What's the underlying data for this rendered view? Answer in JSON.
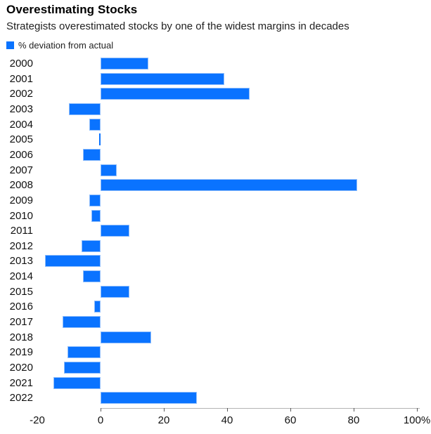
{
  "header": {
    "title": "Overestimating Stocks",
    "subtitle": "Strategists overestimated stocks by one of the widest margins in decades"
  },
  "legend": {
    "label": "% deviation from actual",
    "color": "#0a73ff"
  },
  "chart_data": {
    "type": "bar",
    "orientation": "horizontal",
    "title": "Overestimating Stocks",
    "subtitle": "Strategists overestimated stocks by one of the widest margins in decades",
    "series_name": "% deviation from actual",
    "categories": [
      "2000",
      "2001",
      "2002",
      "2003",
      "2004",
      "2005",
      "2006",
      "2007",
      "2008",
      "2009",
      "2010",
      "2011",
      "2012",
      "2013",
      "2014",
      "2015",
      "2016",
      "2017",
      "2018",
      "2019",
      "2020",
      "2021",
      "2022"
    ],
    "values": [
      15,
      39,
      47,
      -10,
      -3.5,
      -0.5,
      -5.5,
      5,
      81,
      -3.5,
      -3,
      9,
      -6,
      -17.5,
      -5.5,
      9,
      -2,
      -12,
      16,
      -10.5,
      -11.5,
      -15,
      30.5
    ],
    "xlabel": "",
    "ylabel": "",
    "xlim": [
      -20,
      100
    ],
    "x_ticks": [
      -20,
      0,
      20,
      40,
      60,
      80,
      100
    ],
    "x_tick_labels": [
      "-20",
      "0",
      "20",
      "40",
      "60",
      "80",
      "100%"
    ],
    "bar_color": "#0a73ff",
    "grid": false,
    "legend_position": "top-left"
  }
}
